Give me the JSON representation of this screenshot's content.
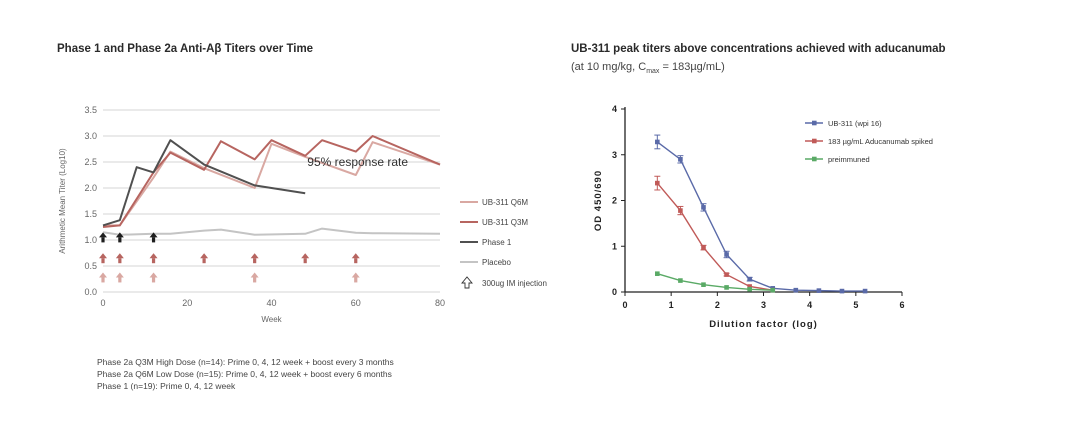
{
  "left_title": "Phase 1 and Phase 2a Anti-Aβ Titers over Time",
  "right_title": "UB-311 peak titers above concentrations achieved with aducanumab",
  "right_subtitle": {
    "prefix": "(at 10 mg/kg, C",
    "sub": "max",
    "suffix": " = 183µg/mL)"
  },
  "footnotes": [
    "Phase 2a Q3M High Dose (n=14): Prime 0, 4, 12 week + boost every 3 months",
    "Phase 2a Q6M Low Dose (n=15): Prime 0, 4, 12 week + boost every 6 months",
    "Phase 1 (n=19): Prime 0, 4, 12 week"
  ],
  "chart_data": [
    {
      "type": "line",
      "title": "Phase 1 and Phase 2a Anti-Aβ Titers over Time",
      "xlabel": "Week",
      "ylabel": "Arithmetic Mean Titer (Log10)",
      "xlim": [
        0,
        80
      ],
      "ylim": [
        0,
        3.5
      ],
      "xticks": [
        0,
        20,
        40,
        60,
        80
      ],
      "yticks": [
        0.0,
        0.5,
        1.0,
        1.5,
        2.0,
        2.5,
        3.0,
        3.5
      ],
      "grid": "horizontal",
      "annotation": "95% response rate",
      "series": [
        {
          "name": "UB-311 Q6M",
          "color": "#d9a8a2",
          "width": 2,
          "x": [
            0,
            4,
            12,
            16,
            24,
            36,
            40,
            48,
            60,
            64,
            80
          ],
          "y": [
            1.28,
            1.28,
            2.2,
            2.7,
            2.38,
            2.0,
            2.85,
            2.6,
            2.25,
            2.88,
            2.45
          ]
        },
        {
          "name": "UB-311 Q3M",
          "color": "#b76560",
          "width": 2,
          "x": [
            0,
            4,
            12,
            16,
            24,
            28,
            36,
            40,
            48,
            52,
            60,
            64,
            80
          ],
          "y": [
            1.25,
            1.28,
            2.3,
            2.68,
            2.35,
            2.9,
            2.55,
            2.92,
            2.62,
            2.92,
            2.7,
            3.0,
            2.45
          ]
        },
        {
          "name": "Phase 1",
          "color": "#505050",
          "width": 2,
          "x": [
            0,
            4,
            8,
            12,
            16,
            24,
            36,
            48
          ],
          "y": [
            1.28,
            1.38,
            2.4,
            2.3,
            2.92,
            2.45,
            2.05,
            1.9
          ]
        },
        {
          "name": "Placebo",
          "color": "#c4c4c4",
          "width": 2,
          "x": [
            0,
            4,
            12,
            16,
            24,
            28,
            36,
            48,
            52,
            60,
            64,
            80
          ],
          "y": [
            1.15,
            1.1,
            1.12,
            1.12,
            1.18,
            1.2,
            1.1,
            1.12,
            1.22,
            1.14,
            1.13,
            1.12
          ]
        }
      ],
      "injection_legend": "300ug IM injection",
      "injection_markers": [
        {
          "row": "phase1",
          "color": "#1e1e1e",
          "y": 1.05,
          "weeks": [
            0,
            4,
            12
          ]
        },
        {
          "row": "q3m",
          "color": "#b76560",
          "y": 0.65,
          "weeks": [
            0,
            4,
            12,
            24,
            36,
            48,
            60
          ]
        },
        {
          "row": "q6m",
          "color": "#d9a8a2",
          "y": 0.28,
          "weeks": [
            0,
            4,
            12,
            36,
            60
          ]
        }
      ]
    },
    {
      "type": "line",
      "title": "UB-311 peak titers above concentrations achieved with aducanumab",
      "xlabel": "Dilution factor (log)",
      "ylabel": "OD 450/690",
      "xlim": [
        0,
        6
      ],
      "ylim": [
        0,
        4
      ],
      "xticks": [
        0,
        1,
        2,
        3,
        4,
        5,
        6
      ],
      "yticks": [
        0,
        1,
        2,
        3,
        4
      ],
      "series": [
        {
          "name": "UB-311 (wpi 16)",
          "color": "#5a6aa8",
          "x": [
            0.7,
            1.2,
            1.7,
            2.2,
            2.7,
            3.2,
            3.7,
            4.2,
            4.7,
            5.2
          ],
          "y": [
            3.28,
            2.9,
            1.85,
            0.82,
            0.28,
            0.08,
            0.04,
            0.03,
            0.02,
            0.02
          ],
          "err": [
            0.15,
            0.08,
            0.08,
            0.07,
            0.04,
            0.02,
            0.01,
            0.01,
            0.01,
            0.01
          ]
        },
        {
          "name": "183 µg/mL Aducanumab spiked",
          "color": "#c05a58",
          "x": [
            0.7,
            1.2,
            1.7,
            2.2,
            2.7,
            3.2
          ],
          "y": [
            2.38,
            1.78,
            0.97,
            0.38,
            0.12,
            0.04
          ],
          "err": [
            0.15,
            0.09,
            0.05,
            0.03,
            0.02,
            0.01
          ]
        },
        {
          "name": "preimmuned",
          "color": "#5aaa66",
          "x": [
            0.7,
            1.2,
            1.7,
            2.2,
            2.7,
            3.2
          ],
          "y": [
            0.4,
            0.25,
            0.16,
            0.1,
            0.06,
            0.04
          ],
          "err": [
            0.02,
            0.01,
            0.01,
            0.01,
            0.01,
            0.01
          ]
        }
      ]
    }
  ]
}
